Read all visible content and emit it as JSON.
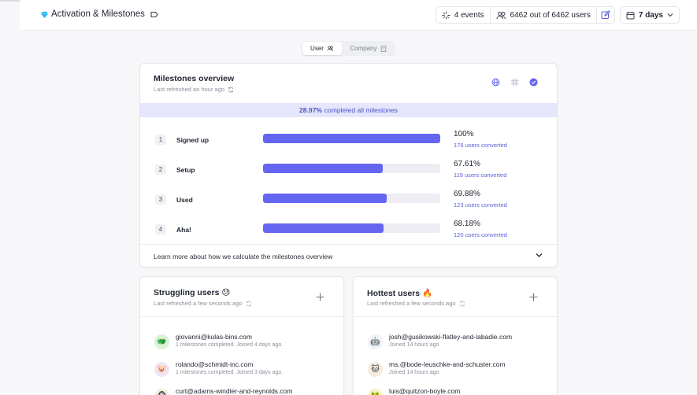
{
  "header": {
    "title": "Activation & Milestones",
    "events": "4 events",
    "users": "6462 out of 6462 users",
    "date_range": "7 days"
  },
  "toggle": {
    "user": "User",
    "company": "Company"
  },
  "overview": {
    "title": "Milestones overview",
    "refreshed": "Last refreshed an hour ago",
    "banner_pct": "28.97%",
    "banner_text": "completed all milestones",
    "milestones": [
      {
        "num": "1",
        "name": "Signed up",
        "pct": "100%",
        "fraction": 1.0,
        "converted": "176 users converted"
      },
      {
        "num": "2",
        "name": "Setup",
        "pct": "67.61%",
        "fraction": 0.6761,
        "converted": "119 users converted"
      },
      {
        "num": "3",
        "name": "Used",
        "pct": "69.88%",
        "fraction": 0.6988,
        "converted": "123 users converted"
      },
      {
        "num": "4",
        "name": "Aha!",
        "pct": "68.18%",
        "fraction": 0.6818,
        "converted": "120 users converted"
      }
    ],
    "learn_more": "Learn more about how we calculate the milestones overview"
  },
  "struggling": {
    "title": "Struggling users",
    "emoji": "😓",
    "refreshed": "Last refreshed a few seconds ago",
    "users": [
      {
        "email": "giovanni@kulas-bins.com",
        "meta": "1 milestones completed. Joined 4 days ago.",
        "avatar": "🐲",
        "bg": "#d9f2d9"
      },
      {
        "email": "rolando@schmidt-inc.com",
        "meta": "1 milestones completed. Joined 3 days ago.",
        "avatar": "🐷",
        "bg": "#eee6f8"
      },
      {
        "email": "curt@adams-windler-and-reynolds.com",
        "meta": "",
        "avatar": "🐵",
        "bg": "#f6ecdd"
      }
    ]
  },
  "hottest": {
    "title": "Hottest users",
    "emoji": "🔥",
    "refreshed": "Last refreshed a few seconds ago",
    "users": [
      {
        "email": "josh@gusikowski-flatley-and-labadie.com",
        "meta": "Joined 14 hours ago",
        "avatar": "🤖",
        "bg": "#f0f1f4"
      },
      {
        "email": "ms.@bode-leuschke-and-schuster.com",
        "meta": "Joined 14 hours ago",
        "avatar": "🐱",
        "bg": "#f6ecdd"
      },
      {
        "email": "luis@quitzon-boyle.com",
        "meta": "",
        "avatar": "🐸",
        "bg": "#f5f1c8"
      }
    ]
  },
  "colors": {
    "accent": "#6466f1",
    "banner_bg": "#e5e5fb",
    "brand_gem": "#29b6f6"
  }
}
